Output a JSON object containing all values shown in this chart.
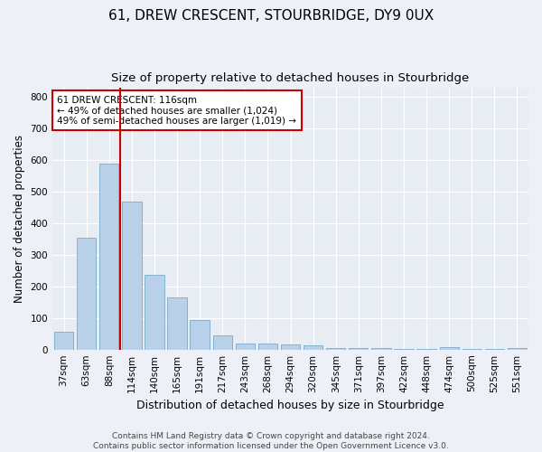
{
  "title": "61, DREW CRESCENT, STOURBRIDGE, DY9 0UX",
  "subtitle": "Size of property relative to detached houses in Stourbridge",
  "xlabel": "Distribution of detached houses by size in Stourbridge",
  "ylabel": "Number of detached properties",
  "footer_line1": "Contains HM Land Registry data © Crown copyright and database right 2024.",
  "footer_line2": "Contains public sector information licensed under the Open Government Licence v3.0.",
  "bar_labels": [
    "37sqm",
    "63sqm",
    "88sqm",
    "114sqm",
    "140sqm",
    "165sqm",
    "191sqm",
    "217sqm",
    "243sqm",
    "268sqm",
    "294sqm",
    "320sqm",
    "345sqm",
    "371sqm",
    "397sqm",
    "422sqm",
    "448sqm",
    "474sqm",
    "500sqm",
    "525sqm",
    "551sqm"
  ],
  "bar_values": [
    55,
    355,
    590,
    470,
    237,
    165,
    95,
    45,
    20,
    20,
    15,
    12,
    6,
    4,
    4,
    3,
    2,
    8,
    2,
    2,
    4
  ],
  "bar_color": "#b8d0e8",
  "bar_edgecolor": "#7aabcc",
  "highlight_color": "#cc0000",
  "vline_x": 2.5,
  "annotation_text": "61 DREW CRESCENT: 116sqm\n← 49% of detached houses are smaller (1,024)\n49% of semi-detached houses are larger (1,019) →",
  "annotation_box_color": "#cc0000",
  "ylim": [
    0,
    830
  ],
  "yticks": [
    0,
    100,
    200,
    300,
    400,
    500,
    600,
    700,
    800
  ],
  "background_color": "#e8edf4",
  "fig_background_color": "#edf1f7",
  "grid_color": "#ffffff",
  "title_fontsize": 11,
  "subtitle_fontsize": 9.5,
  "xlabel_fontsize": 9,
  "ylabel_fontsize": 8.5,
  "tick_fontsize": 7.5,
  "footer_fontsize": 6.5,
  "annotation_fontsize": 7.5
}
